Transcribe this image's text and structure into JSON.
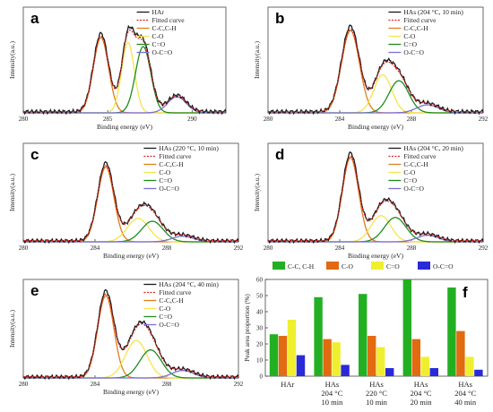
{
  "panels": [
    {
      "letter": "a",
      "xmin": 280,
      "xmax": 292,
      "xticks": [
        280,
        285,
        290
      ],
      "tick_labels": [
        "280",
        "285",
        "290"
      ],
      "ylabel": "Intensity(a.u.)",
      "xlabel": "Binding energy (eV)",
      "legend": [
        "HAr",
        "Fitted curve",
        "C-C,C-H",
        "C-O",
        "C=O",
        "O-C=O"
      ],
      "peaks": [
        {
          "c": 284.6,
          "a": 0.75,
          "w": 0.45
        },
        {
          "c": 286.2,
          "a": 0.7,
          "w": 0.38
        },
        {
          "c": 287.1,
          "a": 0.66,
          "w": 0.45
        },
        {
          "c": 289.1,
          "a": 0.16,
          "w": 0.55
        }
      ]
    },
    {
      "letter": "b",
      "xmin": 280,
      "xmax": 292,
      "xticks": [
        280,
        284,
        288,
        292
      ],
      "tick_labels": [
        "280",
        "284",
        "288",
        "292"
      ],
      "ylabel": "Intensity(a.u.)",
      "xlabel": "Binding energy (eV)",
      "legend": [
        "HAs (204 °C, 10 min)",
        "Fitted curve",
        "C-C,C-H",
        "C-O",
        "C=O",
        "O-C=O"
      ],
      "peaks": [
        {
          "c": 284.6,
          "a": 0.82,
          "w": 0.5
        },
        {
          "c": 286.4,
          "a": 0.38,
          "w": 0.5
        },
        {
          "c": 287.3,
          "a": 0.32,
          "w": 0.55
        },
        {
          "c": 288.9,
          "a": 0.08,
          "w": 0.6
        }
      ]
    },
    {
      "letter": "c",
      "xmin": 280,
      "xmax": 292,
      "xticks": [
        280,
        284,
        288,
        292
      ],
      "tick_labels": [
        "280",
        "284",
        "288",
        "292"
      ],
      "ylabel": "Intensity(a.u.)",
      "xlabel": "Binding energy (eV)",
      "legend": [
        "HAs (220 °C, 10 min)",
        "Fitted curve",
        "C-C,C-H",
        "C-O",
        "C=O",
        "O-C=O"
      ],
      "peaks": [
        {
          "c": 284.6,
          "a": 0.8,
          "w": 0.45
        },
        {
          "c": 286.4,
          "a": 0.25,
          "w": 0.6
        },
        {
          "c": 287.2,
          "a": 0.22,
          "w": 0.6
        },
        {
          "c": 288.9,
          "a": 0.06,
          "w": 0.6
        }
      ]
    },
    {
      "letter": "d",
      "xmin": 280,
      "xmax": 292,
      "xticks": [
        280,
        284,
        288,
        292
      ],
      "tick_labels": [
        "280",
        "284",
        "288",
        "292"
      ],
      "ylabel": "Intensity(a.u.)",
      "xlabel": "Binding energy (eV)",
      "legend": [
        "HAs (204 °C, 20 min)",
        "Fitted curve",
        "C-C,C-H",
        "C-O",
        "C=O",
        "O-C=O"
      ],
      "peaks": [
        {
          "c": 284.6,
          "a": 0.9,
          "w": 0.45
        },
        {
          "c": 286.3,
          "a": 0.28,
          "w": 0.55
        },
        {
          "c": 287.1,
          "a": 0.26,
          "w": 0.6
        },
        {
          "c": 288.9,
          "a": 0.07,
          "w": 0.6
        }
      ]
    },
    {
      "letter": "e",
      "xmin": 280,
      "xmax": 292,
      "xticks": [
        280,
        284,
        288,
        292
      ],
      "tick_labels": [
        "280",
        "284",
        "288",
        "292"
      ],
      "ylabel": "Intensity(a.u.)",
      "xlabel": "Binding energy (eV)",
      "legend": [
        "HAs (204 °C, 40 min)",
        "Fitted curve",
        "C-C,C-H",
        "C-O",
        "C=O",
        "O-C=O"
      ],
      "peaks": [
        {
          "c": 284.6,
          "a": 0.88,
          "w": 0.45
        },
        {
          "c": 286.3,
          "a": 0.4,
          "w": 0.6
        },
        {
          "c": 287.1,
          "a": 0.3,
          "w": 0.6
        },
        {
          "c": 288.9,
          "a": 0.08,
          "w": 0.6
        }
      ]
    }
  ],
  "colors": {
    "raw": "#1a1a1a",
    "fitted": "#e02020",
    "cc": "#e07d1c",
    "co": "#f2e64a",
    "c_eq_o": "#1e8c1e",
    "oco": "#7b6fd6"
  },
  "chart_data": {
    "type": "bar",
    "letter": "f",
    "categories": [
      "HAr",
      "HAs 204 °C 10 min",
      "HAs 220 °C 10 min",
      "HAs 204 °C 20 min",
      "HAs 204 °C 40 min"
    ],
    "category_lines": [
      [
        "HAr"
      ],
      [
        "HAs",
        "204 °C",
        "10 min"
      ],
      [
        "HAs",
        "220 °C",
        "10 min"
      ],
      [
        "HAs",
        "204 °C",
        "20 min"
      ],
      [
        "HAs",
        "204 °C",
        "40 min"
      ]
    ],
    "series": [
      {
        "name": "C-C, C-H",
        "color": "#22b022",
        "values": [
          26,
          49,
          51,
          60,
          55
        ]
      },
      {
        "name": "C-O",
        "color": "#e26a10",
        "values": [
          25,
          23,
          25,
          23,
          28
        ]
      },
      {
        "name": "C=O",
        "color": "#efef30",
        "values": [
          35,
          21,
          18,
          12,
          12
        ]
      },
      {
        "name": "O-C=O",
        "color": "#2a2ad8",
        "values": [
          13,
          7,
          5,
          5,
          4
        ]
      }
    ],
    "ylabel": "Peak area proportion (%)",
    "ylim": [
      0,
      60
    ],
    "yticks": [
      0,
      10,
      20,
      30,
      40,
      50,
      60
    ],
    "legend_placement": "top"
  }
}
